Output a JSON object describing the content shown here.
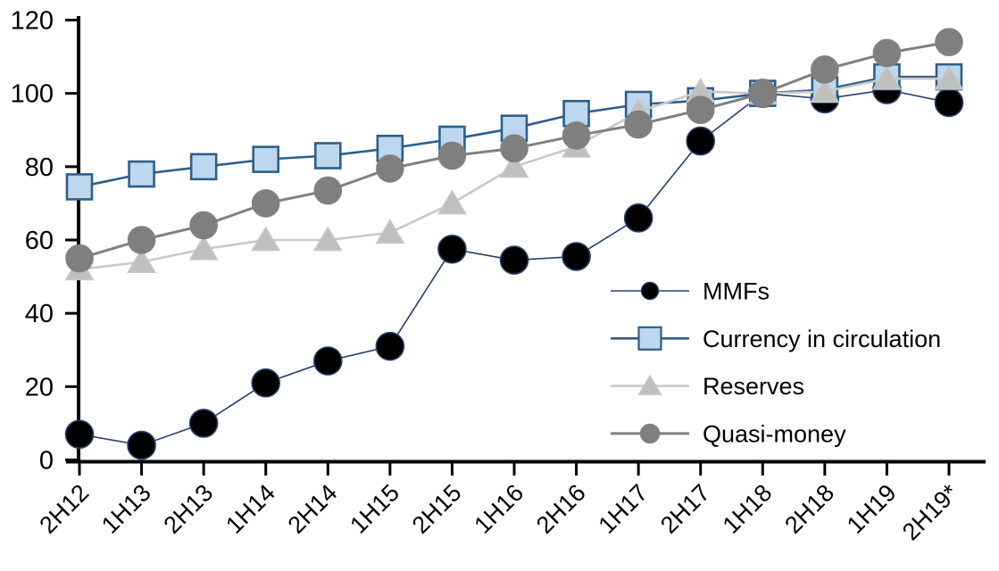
{
  "chart_data": {
    "type": "line",
    "title": "",
    "xlabel": "",
    "ylabel": "",
    "grid": false,
    "legend_position": "middle-right",
    "categories": [
      "2H12",
      "1H13",
      "2H13",
      "1H14",
      "2H14",
      "1H15",
      "2H15",
      "1H16",
      "2H16",
      "1H17",
      "2H17",
      "1H18",
      "2H18",
      "1H19",
      "2H19*"
    ],
    "y_axis": {
      "min": 0,
      "max": 120,
      "step": 20,
      "tick_labels": [
        "0",
        "20",
        "40",
        "60",
        "80",
        "100",
        "120"
      ]
    },
    "series": [
      {
        "name": "MMFs",
        "marker": "circle",
        "marker_fill": "#000000",
        "marker_stroke": "#26406E",
        "line_color": "#26406E",
        "line_width": 1.6,
        "values": [
          7,
          4,
          10,
          21,
          27,
          31,
          57.5,
          54.5,
          55.5,
          66,
          87,
          100,
          98.5,
          101,
          97.5
        ]
      },
      {
        "name": "Currency in circulation",
        "marker": "square",
        "marker_fill": "#BDD7EE",
        "marker_stroke": "#2D5F8A",
        "line_color": "#2D5F8A",
        "line_width": 2.6,
        "values": [
          74.5,
          78,
          80,
          82,
          83,
          85,
          87.5,
          90.5,
          94.5,
          97,
          98,
          100,
          101,
          104.5,
          104.5
        ]
      },
      {
        "name": "Reserves",
        "marker": "triangle",
        "marker_fill": "#BFBFBF",
        "marker_stroke": "#C6C6C6",
        "line_color": "#C9C9C9",
        "line_width": 2.6,
        "values": [
          52,
          54,
          57.5,
          60,
          60,
          62,
          70,
          80,
          85.5,
          95,
          100.5,
          100,
          100.5,
          104,
          104
        ]
      },
      {
        "name": "Quasi-money",
        "marker": "circle",
        "marker_fill": "#7F7F7F",
        "marker_stroke": "#808080",
        "line_color": "#808080",
        "line_width": 3,
        "values": [
          55,
          60,
          64,
          70,
          73.5,
          79.5,
          83,
          85,
          88.5,
          91.5,
          95.5,
          100,
          106.5,
          111,
          114
        ]
      }
    ],
    "axis_color": "#000000"
  }
}
